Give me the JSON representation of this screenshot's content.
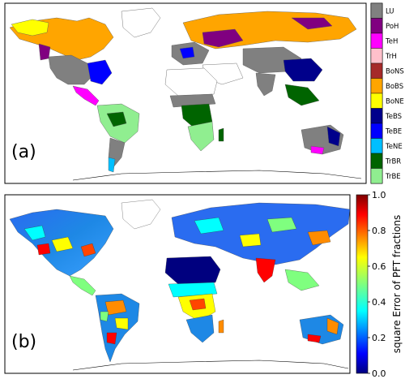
{
  "panel_a": {
    "label": "(a)",
    "legend": [
      {
        "code": "LU",
        "color": "#808080"
      },
      {
        "code": "PoH",
        "color": "#800080"
      },
      {
        "code": "TeH",
        "color": "#ff00ff"
      },
      {
        "code": "TrH",
        "color": "#ffc0cb"
      },
      {
        "code": "BoNS",
        "color": "#a52a2a"
      },
      {
        "code": "BoBS",
        "color": "#ffa500"
      },
      {
        "code": "BoNE",
        "color": "#ffff00"
      },
      {
        "code": "TeBS",
        "color": "#00008b"
      },
      {
        "code": "TeBE",
        "color": "#0000ff"
      },
      {
        "code": "TeNE",
        "color": "#00bfff"
      },
      {
        "code": "TrBR",
        "color": "#006400"
      },
      {
        "code": "TrBE",
        "color": "#90ee90"
      }
    ]
  },
  "panel_b": {
    "label": "(b)",
    "colorbar": {
      "title": "square Error of PFT fractions",
      "ticks": [
        "0.0",
        "0.2",
        "0.4",
        "0.6",
        "0.8",
        "1.0"
      ],
      "min": 0.0,
      "max": 1.0
    }
  }
}
